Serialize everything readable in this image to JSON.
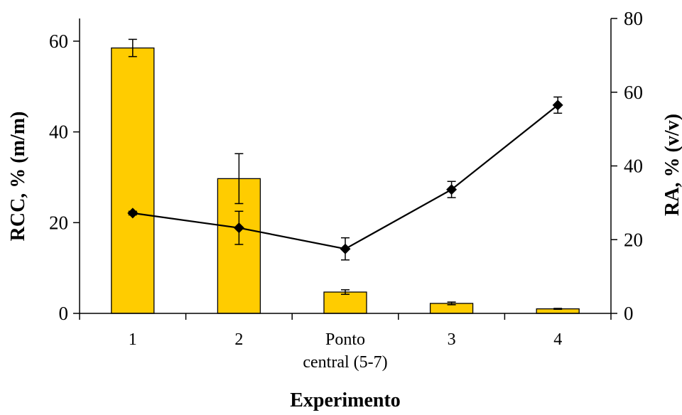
{
  "chart_data": {
    "type": "bar",
    "xlabel": "Experimento",
    "ylabel_left": "RCC, % (m/m)",
    "ylabel_right": "RA, % (v/v)",
    "categories": [
      {
        "lines": [
          "1"
        ]
      },
      {
        "lines": [
          "2"
        ]
      },
      {
        "lines": [
          "Ponto",
          "central (5-7)"
        ]
      },
      {
        "lines": [
          "3"
        ]
      },
      {
        "lines": [
          "4"
        ]
      }
    ],
    "ylim_left": [
      0,
      65
    ],
    "yticks_left": [
      0,
      20,
      40,
      60
    ],
    "ylim_right": [
      0,
      80
    ],
    "yticks_right": [
      0,
      20,
      40,
      60,
      80
    ],
    "series": [
      {
        "axis": "left",
        "kind": "bar",
        "values": [
          58.5,
          29.7,
          4.7,
          2.2,
          1.0
        ],
        "errors": [
          1.9,
          5.5,
          0.5,
          0.3,
          0.1
        ],
        "color": "#FFCC00"
      },
      {
        "axis": "right",
        "kind": "line",
        "marker": "diamond",
        "values": [
          27.2,
          23.2,
          17.5,
          33.6,
          56.5
        ],
        "errors": [
          0.5,
          4.5,
          3.0,
          2.2,
          2.2
        ],
        "color": "#000000"
      }
    ],
    "grid": false,
    "legend": "none"
  }
}
